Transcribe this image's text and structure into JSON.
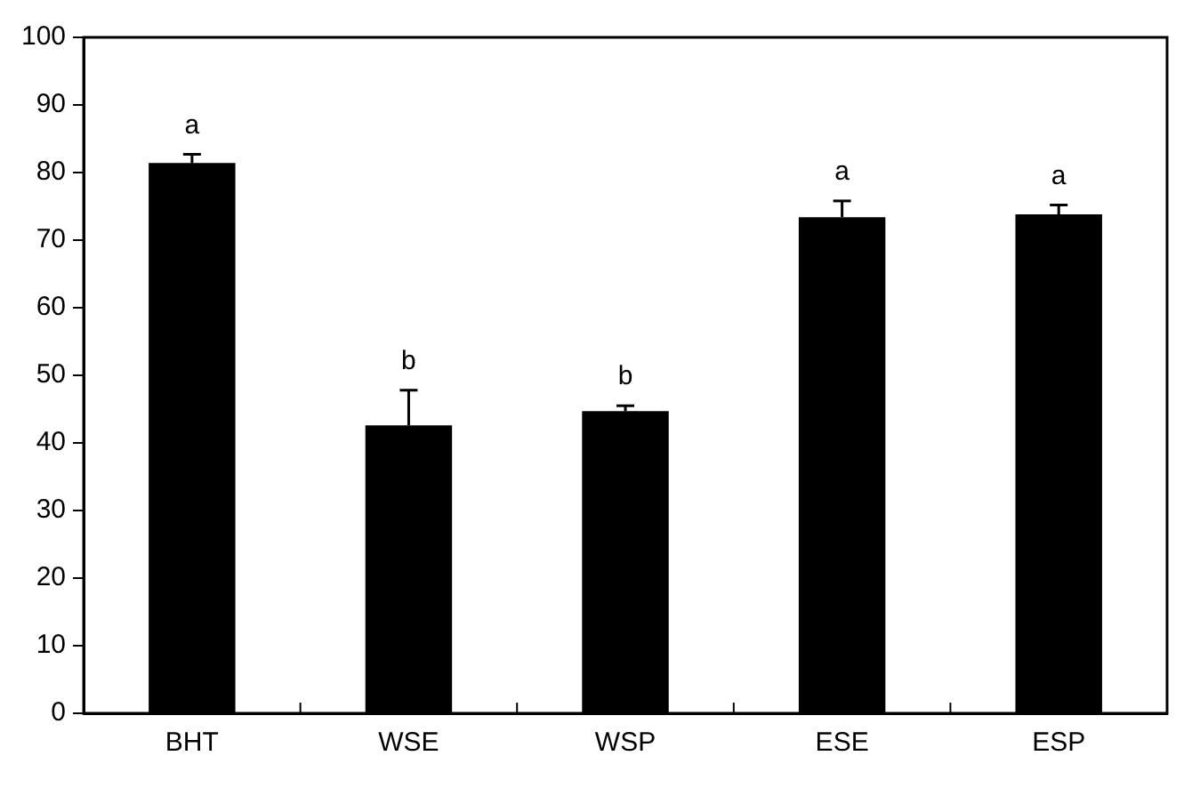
{
  "chart_data": {
    "type": "bar",
    "categories": [
      "BHT",
      "WSE",
      "WSP",
      "ESE",
      "ESP"
    ],
    "values": [
      81.4,
      42.6,
      44.7,
      73.4,
      73.8
    ],
    "color": "#000000",
    "errors": [
      [
        81.4,
        82.7
      ],
      [
        42.6,
        47.8
      ],
      [
        44.7,
        45.5
      ],
      [
        73.4,
        75.8
      ],
      [
        73.8,
        75.2
      ]
    ],
    "ylim": [
      0,
      100
    ],
    "yticks": [
      0,
      10,
      20,
      30,
      40,
      50,
      60,
      70,
      80,
      90,
      100
    ],
    "grid": false,
    "legend": false,
    "annotations": [
      "a",
      "b",
      "b",
      "a",
      "a"
    ]
  }
}
